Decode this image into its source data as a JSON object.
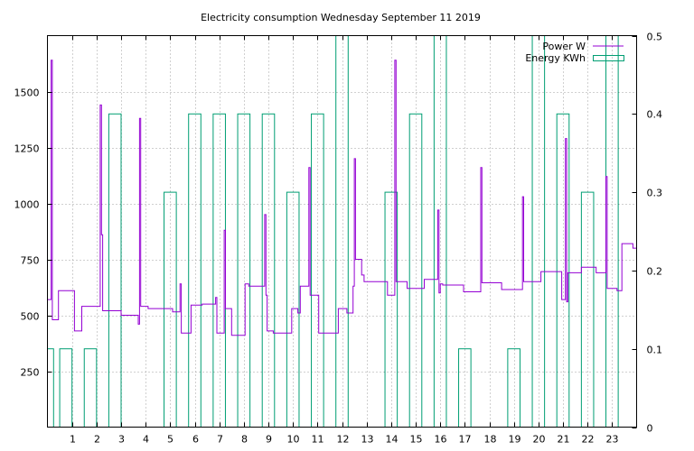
{
  "chart_data": {
    "type": "line",
    "title": "Electricity consumption Wednesday September 11 2019",
    "xlabel": "",
    "ylabel": "",
    "y2label": "",
    "xlim": [
      0,
      24
    ],
    "ylim": [
      0,
      1750
    ],
    "y2lim": [
      0,
      0.5
    ],
    "grid": true,
    "legend_placement": "top-right",
    "x_ticks": [
      "1",
      "2",
      "3",
      "4",
      "5",
      "6",
      "7",
      "8",
      "9",
      "10",
      "11",
      "12",
      "13",
      "14",
      "15",
      "16",
      "17",
      "18",
      "19",
      "20",
      "21",
      "22",
      "23"
    ],
    "y_ticks": [
      "250",
      "500",
      "750",
      "1000",
      "1250",
      "1500"
    ],
    "y2_ticks": [
      "0",
      "0.1",
      "0.2",
      "0.3",
      "0.4",
      "0.5"
    ],
    "series": [
      {
        "name": "Power W",
        "color": "#9400d3",
        "style": "steps",
        "axis": "left",
        "points": [
          [
            0,
            570
          ],
          [
            0.15,
            570
          ],
          [
            0.15,
            1640
          ],
          [
            0.2,
            1640
          ],
          [
            0.2,
            480
          ],
          [
            0.45,
            480
          ],
          [
            0.45,
            610
          ],
          [
            1.1,
            610
          ],
          [
            1.1,
            430
          ],
          [
            1.4,
            430
          ],
          [
            1.4,
            540
          ],
          [
            2.15,
            540
          ],
          [
            2.15,
            1440
          ],
          [
            2.2,
            1440
          ],
          [
            2.2,
            860
          ],
          [
            2.25,
            860
          ],
          [
            2.25,
            520
          ],
          [
            3,
            520
          ],
          [
            3,
            500
          ],
          [
            3.7,
            500
          ],
          [
            3.7,
            460
          ],
          [
            3.75,
            460
          ],
          [
            3.75,
            1380
          ],
          [
            3.8,
            1380
          ],
          [
            3.8,
            540
          ],
          [
            4.1,
            540
          ],
          [
            4.1,
            530
          ],
          [
            5.1,
            530
          ],
          [
            5.1,
            515
          ],
          [
            5.4,
            515
          ],
          [
            5.4,
            640
          ],
          [
            5.45,
            640
          ],
          [
            5.45,
            420
          ],
          [
            5.85,
            420
          ],
          [
            5.85,
            545
          ],
          [
            6.3,
            545
          ],
          [
            6.3,
            550
          ],
          [
            6.85,
            550
          ],
          [
            6.85,
            580
          ],
          [
            6.9,
            580
          ],
          [
            6.9,
            420
          ],
          [
            7.2,
            420
          ],
          [
            7.2,
            880
          ],
          [
            7.25,
            880
          ],
          [
            7.25,
            530
          ],
          [
            7.5,
            530
          ],
          [
            7.5,
            410
          ],
          [
            8.05,
            410
          ],
          [
            8.05,
            640
          ],
          [
            8.2,
            640
          ],
          [
            8.2,
            630
          ],
          [
            8.85,
            630
          ],
          [
            8.85,
            950
          ],
          [
            8.9,
            950
          ],
          [
            8.9,
            590
          ],
          [
            8.95,
            590
          ],
          [
            8.95,
            430
          ],
          [
            9.2,
            430
          ],
          [
            9.2,
            420
          ],
          [
            9.95,
            420
          ],
          [
            9.95,
            530
          ],
          [
            10.2,
            530
          ],
          [
            10.2,
            510
          ],
          [
            10.3,
            510
          ],
          [
            10.3,
            630
          ],
          [
            10.65,
            630
          ],
          [
            10.65,
            1160
          ],
          [
            10.7,
            1160
          ],
          [
            10.7,
            590
          ],
          [
            11.05,
            590
          ],
          [
            11.05,
            420
          ],
          [
            11.85,
            420
          ],
          [
            11.85,
            530
          ],
          [
            12.2,
            530
          ],
          [
            12.2,
            510
          ],
          [
            12.45,
            510
          ],
          [
            12.45,
            630
          ],
          [
            12.5,
            630
          ],
          [
            12.5,
            1200
          ],
          [
            12.55,
            1200
          ],
          [
            12.55,
            750
          ],
          [
            12.8,
            750
          ],
          [
            12.8,
            680
          ],
          [
            12.9,
            680
          ],
          [
            12.9,
            650
          ],
          [
            13.85,
            650
          ],
          [
            13.85,
            590
          ],
          [
            14.15,
            590
          ],
          [
            14.15,
            1640
          ],
          [
            14.2,
            1640
          ],
          [
            14.2,
            650
          ],
          [
            14.65,
            650
          ],
          [
            14.65,
            620
          ],
          [
            15.35,
            620
          ],
          [
            15.35,
            660
          ],
          [
            15.9,
            660
          ],
          [
            15.9,
            970
          ],
          [
            15.95,
            970
          ],
          [
            15.95,
            600
          ],
          [
            16.0,
            600
          ],
          [
            16.0,
            640
          ],
          [
            16.1,
            640
          ],
          [
            16.1,
            635
          ],
          [
            16.95,
            635
          ],
          [
            16.95,
            605
          ],
          [
            17.65,
            605
          ],
          [
            17.65,
            1160
          ],
          [
            17.7,
            1160
          ],
          [
            17.7,
            645
          ],
          [
            18.5,
            645
          ],
          [
            18.5,
            615
          ],
          [
            19.35,
            615
          ],
          [
            19.35,
            1030
          ],
          [
            19.4,
            1030
          ],
          [
            19.4,
            650
          ],
          [
            20.1,
            650
          ],
          [
            20.1,
            695
          ],
          [
            20.95,
            695
          ],
          [
            20.95,
            570
          ],
          [
            21.1,
            570
          ],
          [
            21.1,
            1290
          ],
          [
            21.15,
            1290
          ],
          [
            21.15,
            560
          ],
          [
            21.2,
            560
          ],
          [
            21.2,
            690
          ],
          [
            21.75,
            690
          ],
          [
            21.75,
            715
          ],
          [
            22.35,
            715
          ],
          [
            22.35,
            690
          ],
          [
            22.75,
            690
          ],
          [
            22.75,
            1120
          ],
          [
            22.8,
            1120
          ],
          [
            22.8,
            620
          ],
          [
            23.2,
            620
          ],
          [
            23.2,
            610
          ],
          [
            23.4,
            610
          ],
          [
            23.4,
            820
          ],
          [
            23.85,
            820
          ],
          [
            23.85,
            800
          ],
          [
            24,
            800
          ]
        ]
      },
      {
        "name": "Energy KWh",
        "color": "#009e73",
        "style": "boxes",
        "axis": "right",
        "bars": [
          [
            0,
            0.25,
            0.1
          ],
          [
            0.5,
            1.0,
            0.1
          ],
          [
            1.5,
            2.0,
            0.1
          ],
          [
            2.5,
            3.0,
            0.4
          ],
          [
            4.75,
            5.25,
            0.3
          ],
          [
            5.75,
            6.25,
            0.4
          ],
          [
            6.75,
            7.25,
            0.4
          ],
          [
            7.75,
            8.25,
            0.4
          ],
          [
            8.75,
            9.25,
            0.4
          ],
          [
            9.75,
            10.25,
            0.3
          ],
          [
            10.75,
            11.25,
            0.4
          ],
          [
            11.75,
            12.25,
            0.5
          ],
          [
            13.75,
            14.25,
            0.3
          ],
          [
            14.75,
            15.25,
            0.4
          ],
          [
            15.75,
            16.25,
            0.5
          ],
          [
            16.75,
            17.25,
            0.1
          ],
          [
            18.75,
            19.25,
            0.1
          ],
          [
            19.75,
            20.25,
            0.5
          ],
          [
            20.75,
            21.25,
            0.4
          ],
          [
            21.75,
            22.25,
            0.3
          ],
          [
            22.75,
            23.25,
            0.5
          ]
        ]
      }
    ]
  }
}
